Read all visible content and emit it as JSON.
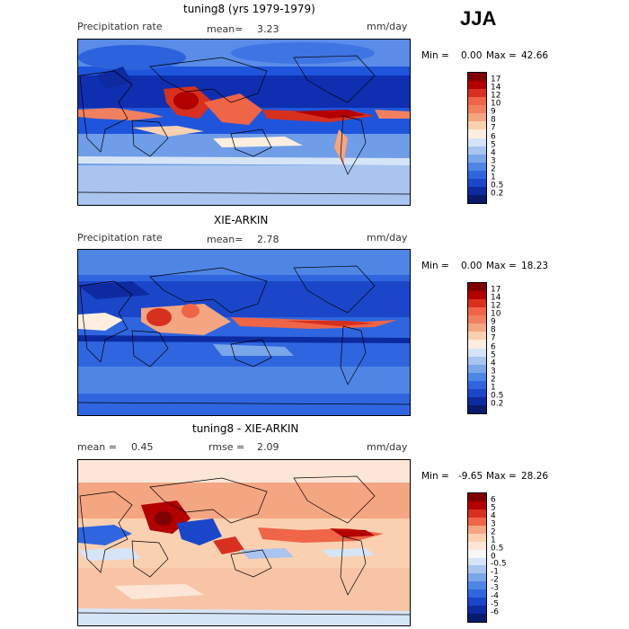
{
  "season": "JJA",
  "panels": [
    {
      "title": "tuning8 (yrs 1979-1979)",
      "left_label": "Precipitation rate",
      "center_label": "mean=",
      "center_value": "3.23",
      "right_label": "",
      "right_value": "",
      "units": "mm/day",
      "min_label": "Min =",
      "min_value": "0.00",
      "max_label": "Max =",
      "max_value": "42.66",
      "colorbar_ticks": [
        "17",
        "14",
        "12",
        "10",
        "9",
        "8",
        "7",
        "6",
        "5",
        "4",
        "3",
        "2",
        "1",
        "0.5",
        "0.2"
      ]
    },
    {
      "title": "XIE-ARKIN",
      "left_label": "Precipitation rate",
      "center_label": "mean=",
      "center_value": "2.78",
      "right_label": "",
      "right_value": "",
      "units": "mm/day",
      "min_label": "Min =",
      "min_value": "0.00",
      "max_label": "Max =",
      "max_value": "18.23",
      "colorbar_ticks": [
        "17",
        "14",
        "12",
        "10",
        "9",
        "8",
        "7",
        "6",
        "5",
        "4",
        "3",
        "2",
        "1",
        "0.5",
        "0.2"
      ]
    },
    {
      "title": "tuning8 - XIE-ARKIN",
      "left_label": "mean =",
      "center_label": "",
      "center_value": "0.45",
      "right_label": "rmse =",
      "right_value": "2.09",
      "units": "mm/day",
      "min_label": "Min =",
      "min_value": "-9.65",
      "max_label": "Max =",
      "max_value": "28.26",
      "colorbar_ticks": [
        "6",
        "5",
        "4",
        "3",
        "2",
        "1",
        "0.5",
        "0",
        "-0.5",
        "-1",
        "-2",
        "-3",
        "-4",
        "-5",
        "-6"
      ]
    }
  ],
  "colors": {
    "precip_scale": [
      "#7f0000",
      "#b30000",
      "#d7301f",
      "#ef6548",
      "#f08060",
      "#f4a582",
      "#fbd0b0",
      "#fdeee0",
      "#d6e4f7",
      "#a8c4ef",
      "#7aa6ea",
      "#4f86e6",
      "#2f66df",
      "#1b46c9",
      "#0d2aa0",
      "#071a6b"
    ],
    "diff_scale": [
      "#7f0000",
      "#b30000",
      "#d7301f",
      "#ef6548",
      "#f4a582",
      "#fbd0b0",
      "#fde6d8",
      "#f7f7f7",
      "#d6e4f7",
      "#a8c4ef",
      "#7aa6ea",
      "#4f86e6",
      "#2f66df",
      "#1b46c9",
      "#0d2aa0",
      "#071a6b"
    ]
  }
}
